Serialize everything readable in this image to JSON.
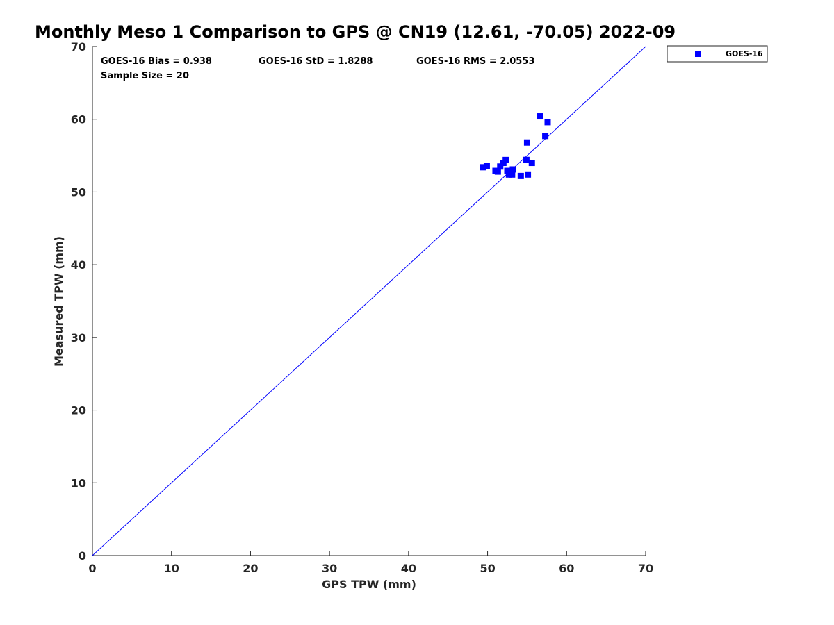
{
  "colors": {
    "series": "#0000ff",
    "axis": "#262626",
    "background": "#ffffff"
  },
  "chart_data": {
    "type": "scatter",
    "title": "Monthly Meso 1 Comparison to GPS @ CN19 (12.61, -70.05) 2022-09",
    "xlabel": "GPS TPW (mm)",
    "ylabel": "Measured TPW (mm)",
    "xlim": [
      0,
      70
    ],
    "ylim": [
      0,
      70
    ],
    "xticks": [
      "0",
      "10",
      "20",
      "30",
      "40",
      "50",
      "60",
      "70"
    ],
    "yticks": [
      "0",
      "10",
      "20",
      "30",
      "40",
      "50",
      "60",
      "70"
    ],
    "grid": false,
    "legend_position": "outside-top-right",
    "reference_line": {
      "x": [
        0,
        70
      ],
      "y": [
        0,
        70
      ]
    },
    "annotations": {
      "bias": "GOES-16 Bias = 0.938",
      "std": "GOES-16 StD = 1.8288",
      "rms": "GOES-16 RMS = 2.0553",
      "sample_size": "Sample Size = 20"
    },
    "series": [
      {
        "name": "GOES-16",
        "marker": "square",
        "x": [
          49.4,
          49.9,
          51.0,
          51.3,
          51.6,
          52.0,
          52.3,
          52.5,
          52.7,
          53.1,
          53.2,
          54.2,
          54.9,
          55.0,
          55.1,
          55.6,
          56.6,
          57.3,
          57.6,
          54.9
        ],
        "y": [
          53.4,
          53.6,
          52.9,
          52.8,
          53.5,
          54.0,
          54.4,
          52.9,
          52.4,
          52.4,
          53.1,
          52.2,
          54.4,
          56.8,
          52.4,
          54.0,
          60.4,
          57.7,
          59.6,
          54.4
        ]
      }
    ]
  }
}
